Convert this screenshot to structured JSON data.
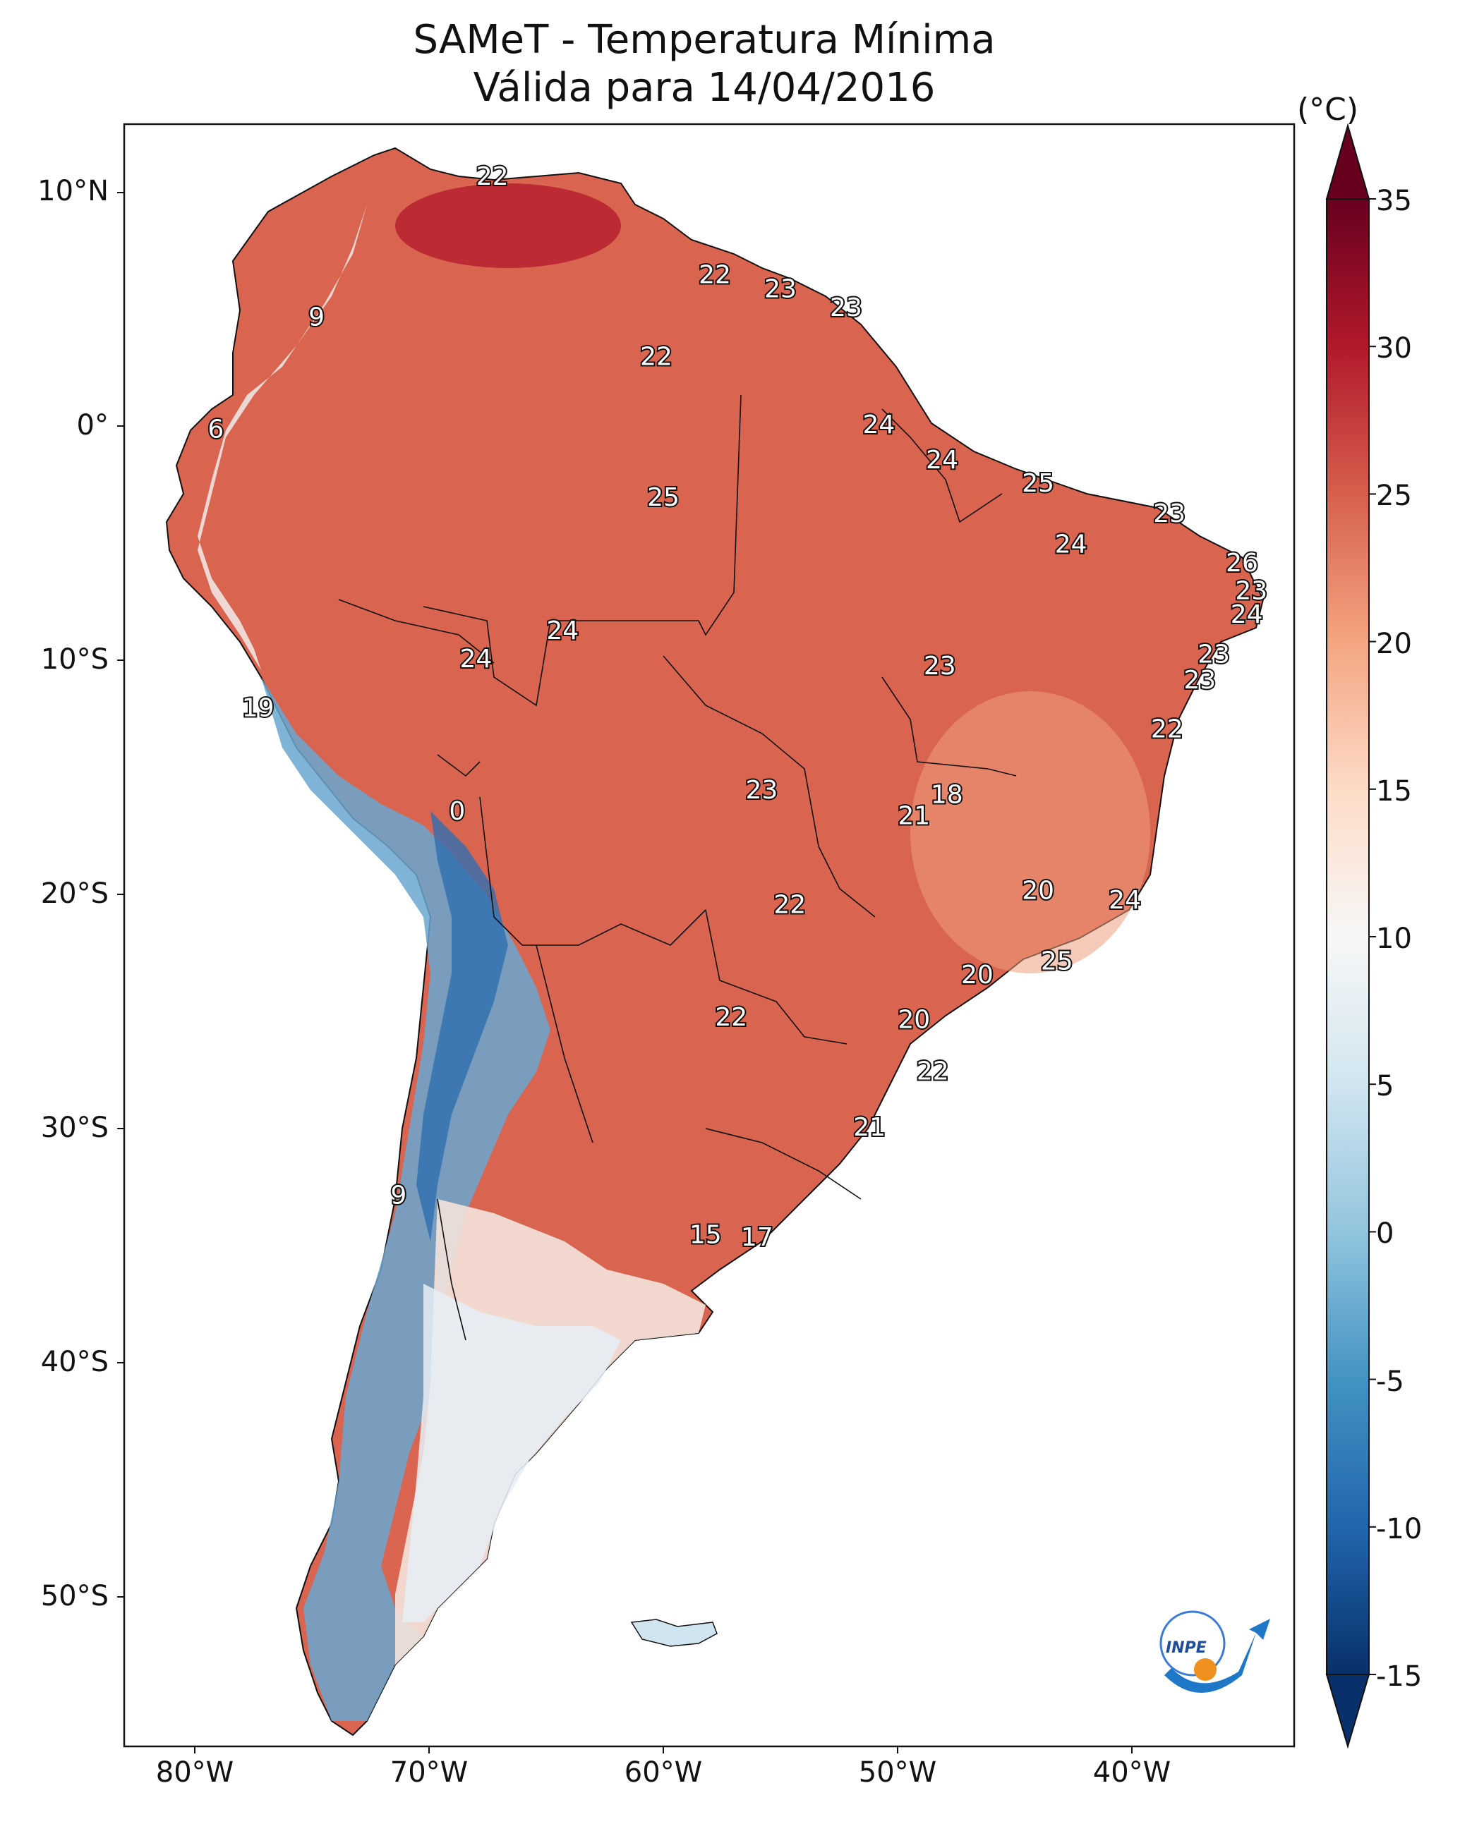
{
  "title_line1": "SAMeT - Temperatura Mínima",
  "title_line2": "Válida para 14/04/2016",
  "colorbar": {
    "unit": "(°C)",
    "ticks": [
      "35",
      "30",
      "25",
      "20",
      "15",
      "10",
      "5",
      "0",
      "-5",
      "-10",
      "-15"
    ],
    "min": -15,
    "max": 35,
    "colors": [
      "#08306b",
      "#2166ac",
      "#4393c3",
      "#92c5de",
      "#d1e5f0",
      "#f7f7f7",
      "#fddbc7",
      "#f4a582",
      "#d6604d",
      "#b2182b",
      "#67001f"
    ]
  },
  "axes": {
    "lat_labels": [
      "10°N",
      "0°",
      "10°S",
      "20°S",
      "30°S",
      "40°S",
      "50°S"
    ],
    "lon_labels": [
      "80°W",
      "70°W",
      "60°W",
      "50°W",
      "40°W"
    ]
  },
  "logo_text": "INPE",
  "station_labels": [
    {
      "text": "22",
      "lon": -67.3,
      "lat": 10.6
    },
    {
      "text": "22",
      "lon": -57.8,
      "lat": 6.4
    },
    {
      "text": "23",
      "lon": -55.0,
      "lat": 5.8
    },
    {
      "text": "23",
      "lon": -52.2,
      "lat": 5.0
    },
    {
      "text": "9",
      "lon": -74.8,
      "lat": 4.6
    },
    {
      "text": "22",
      "lon": -60.3,
      "lat": 2.9
    },
    {
      "text": "6",
      "lon": -79.1,
      "lat": -0.2
    },
    {
      "text": "24",
      "lon": -50.8,
      "lat": 0.0
    },
    {
      "text": "24",
      "lon": -48.1,
      "lat": -1.5
    },
    {
      "text": "25",
      "lon": -60.0,
      "lat": -3.1
    },
    {
      "text": "25",
      "lon": -44.0,
      "lat": -2.5
    },
    {
      "text": "23",
      "lon": -38.4,
      "lat": -3.8
    },
    {
      "text": "24",
      "lon": -42.6,
      "lat": -5.1
    },
    {
      "text": "26",
      "lon": -35.3,
      "lat": -5.9
    },
    {
      "text": "23",
      "lon": -34.9,
      "lat": -7.1
    },
    {
      "text": "24",
      "lon": -35.1,
      "lat": -8.1
    },
    {
      "text": "24",
      "lon": -64.3,
      "lat": -8.8
    },
    {
      "text": "24",
      "lon": -68.0,
      "lat": -10.0
    },
    {
      "text": "23",
      "lon": -36.5,
      "lat": -9.8
    },
    {
      "text": "23",
      "lon": -48.2,
      "lat": -10.3
    },
    {
      "text": "23",
      "lon": -37.1,
      "lat": -10.9
    },
    {
      "text": "19",
      "lon": -77.3,
      "lat": -12.1
    },
    {
      "text": "22",
      "lon": -38.5,
      "lat": -13.0
    },
    {
      "text": "23",
      "lon": -55.8,
      "lat": -15.6
    },
    {
      "text": "18",
      "lon": -47.9,
      "lat": -15.8
    },
    {
      "text": "21",
      "lon": -49.3,
      "lat": -16.7
    },
    {
      "text": "0",
      "lon": -68.8,
      "lat": -16.5
    },
    {
      "text": "20",
      "lon": -44.0,
      "lat": -19.9
    },
    {
      "text": "24",
      "lon": -40.3,
      "lat": -20.3
    },
    {
      "text": "22",
      "lon": -54.6,
      "lat": -20.5
    },
    {
      "text": "25",
      "lon": -43.2,
      "lat": -22.9
    },
    {
      "text": "20",
      "lon": -46.6,
      "lat": -23.5
    },
    {
      "text": "20",
      "lon": -49.3,
      "lat": -25.4
    },
    {
      "text": "22",
      "lon": -57.1,
      "lat": -25.3
    },
    {
      "text": "22",
      "lon": -48.5,
      "lat": -27.6
    },
    {
      "text": "21",
      "lon": -51.2,
      "lat": -30.0
    },
    {
      "text": "9",
      "lon": -71.3,
      "lat": -32.9
    },
    {
      "text": "15",
      "lon": -58.2,
      "lat": -34.6
    },
    {
      "text": "17",
      "lon": -56.0,
      "lat": -34.7
    }
  ]
}
